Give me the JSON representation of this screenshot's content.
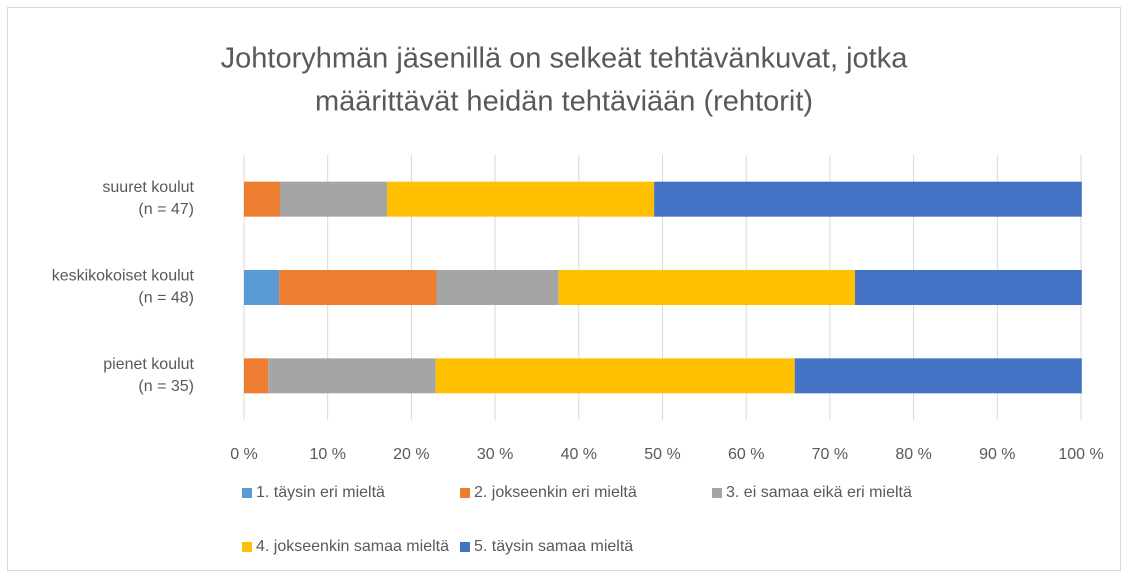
{
  "chart_data": {
    "type": "stacked_barh",
    "title": "Johtoryhmän jäsenillä on selkeät tehtävänkuvat, jotka\nmäärittävät heidän tehtäviään (rehtorit)",
    "categories": [
      "suuret koulut\n(n = 47)",
      "keskikokoiset koulut\n(n = 48)",
      "pienet koulut\n(n = 35)"
    ],
    "series": [
      {
        "name": "1. täysin eri mieltä",
        "color": "#5b9bd5",
        "values": [
          0,
          4.2,
          0
        ]
      },
      {
        "name": "2. jokseenkin eri mieltä",
        "color": "#ed7d31",
        "values": [
          4.3,
          18.8,
          2.9
        ]
      },
      {
        "name": "3. ei samaa eikä eri mieltä",
        "color": "#a5a5a5",
        "values": [
          12.8,
          14.6,
          20.0
        ]
      },
      {
        "name": "4. jokseenkin samaa mieltä",
        "color": "#ffc000",
        "values": [
          31.9,
          35.4,
          42.9
        ]
      },
      {
        "name": "5. täysin samaa mieltä",
        "color": "#4472c4",
        "values": [
          51.1,
          27.1,
          34.3
        ]
      }
    ],
    "xlim": [
      0,
      100
    ],
    "xticks": [
      {
        "value": 0,
        "label": "0 %"
      },
      {
        "value": 10,
        "label": "10 %"
      },
      {
        "value": 20,
        "label": "20 %"
      },
      {
        "value": 30,
        "label": "30 %"
      },
      {
        "value": 40,
        "label": "40 %"
      },
      {
        "value": 50,
        "label": "50 %"
      },
      {
        "value": 60,
        "label": "60 %"
      },
      {
        "value": 70,
        "label": "70 %"
      },
      {
        "value": 80,
        "label": "80 %"
      },
      {
        "value": 90,
        "label": "90 %"
      },
      {
        "value": 100,
        "label": "100 %"
      }
    ],
    "grid": true,
    "legend": "bottom"
  }
}
